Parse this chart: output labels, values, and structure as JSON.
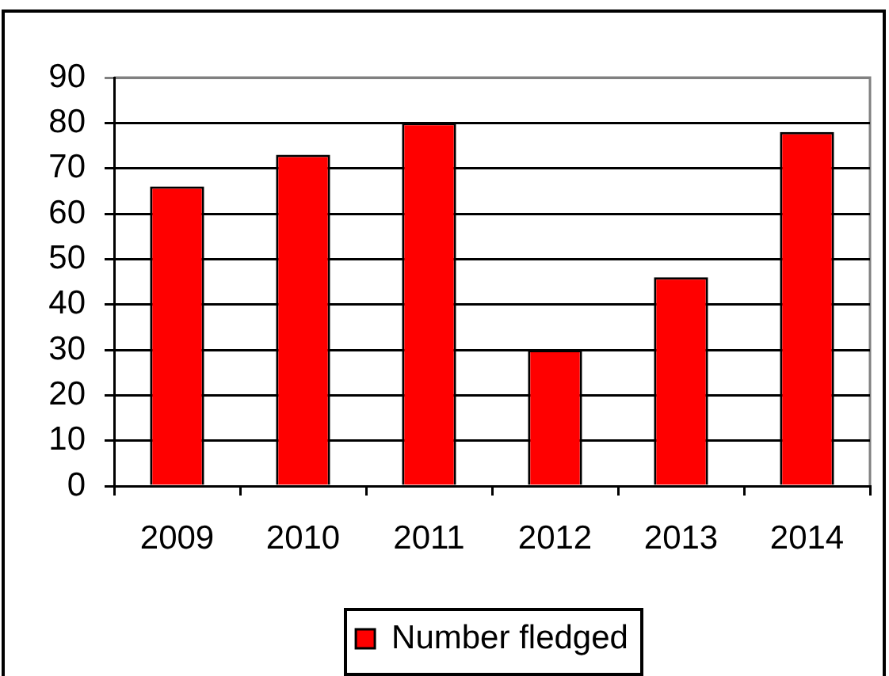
{
  "chart_data": {
    "type": "bar",
    "categories": [
      "2009",
      "2010",
      "2011",
      "2012",
      "2013",
      "2014"
    ],
    "series": [
      {
        "name": "Number fledged",
        "color": "#ff0000",
        "values": [
          66,
          73,
          80,
          30,
          46,
          78
        ]
      }
    ],
    "ylim": [
      0,
      90
    ],
    "yticks": [
      0,
      10,
      20,
      30,
      40,
      50,
      60,
      70,
      80,
      90
    ],
    "grid": "y",
    "legend": "bottom"
  }
}
